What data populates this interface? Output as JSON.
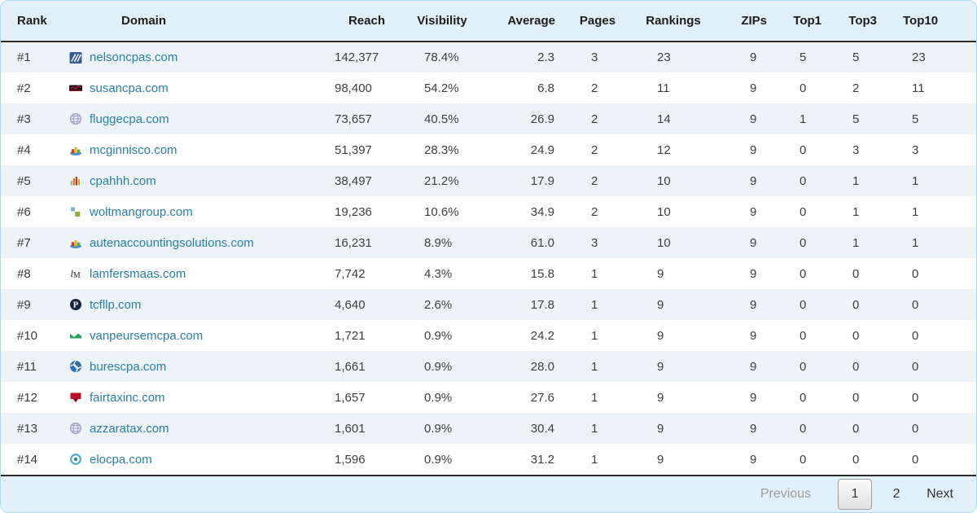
{
  "table": {
    "columns": [
      {
        "key": "rank",
        "label": "Rank"
      },
      {
        "key": "domain",
        "label": "Domain"
      },
      {
        "key": "reach",
        "label": "Reach"
      },
      {
        "key": "visibility",
        "label": "Visibility"
      },
      {
        "key": "average",
        "label": "Average"
      },
      {
        "key": "pages",
        "label": "Pages"
      },
      {
        "key": "rankings",
        "label": "Rankings"
      },
      {
        "key": "zips",
        "label": "ZIPs"
      },
      {
        "key": "top1",
        "label": "Top1"
      },
      {
        "key": "top3",
        "label": "Top3"
      },
      {
        "key": "top10",
        "label": "Top10"
      }
    ],
    "rows": [
      {
        "rank": "#1",
        "domain": "nelsoncpas.com",
        "favicon": "navy-striped-square",
        "reach": "142,377",
        "visibility": "78.4%",
        "average": "2.3",
        "pages": "3",
        "rankings": "23",
        "zips": "9",
        "top1": "5",
        "top3": "5",
        "top10": "23"
      },
      {
        "rank": "#2",
        "domain": "susancpa.com",
        "favicon": "dark-red-script-banner",
        "reach": "98,400",
        "visibility": "54.2%",
        "average": "6.8",
        "pages": "2",
        "rankings": "11",
        "zips": "9",
        "top1": "0",
        "top3": "2",
        "top10": "11"
      },
      {
        "rank": "#3",
        "domain": "fluggecpa.com",
        "favicon": "globe",
        "reach": "73,657",
        "visibility": "40.5%",
        "average": "26.9",
        "pages": "2",
        "rankings": "14",
        "zips": "9",
        "top1": "1",
        "top3": "5",
        "top10": "5"
      },
      {
        "rank": "#4",
        "domain": "mcginnisco.com",
        "favicon": "colorful-3d-chart",
        "reach": "51,397",
        "visibility": "28.3%",
        "average": "24.9",
        "pages": "2",
        "rankings": "12",
        "zips": "9",
        "top1": "0",
        "top3": "3",
        "top10": "3"
      },
      {
        "rank": "#5",
        "domain": "cpahhh.com",
        "favicon": "orange-bar-chart",
        "reach": "38,497",
        "visibility": "21.2%",
        "average": "17.9",
        "pages": "2",
        "rankings": "10",
        "zips": "9",
        "top1": "0",
        "top3": "1",
        "top10": "1"
      },
      {
        "rank": "#6",
        "domain": "woltmangroup.com",
        "favicon": "green-squares",
        "reach": "19,236",
        "visibility": "10.6%",
        "average": "34.9",
        "pages": "2",
        "rankings": "10",
        "zips": "9",
        "top1": "0",
        "top3": "1",
        "top10": "1"
      },
      {
        "rank": "#7",
        "domain": "autenaccountingsolutions.com",
        "favicon": "colorful-3d-chart",
        "reach": "16,231",
        "visibility": "8.9%",
        "average": "61.0",
        "pages": "3",
        "rankings": "10",
        "zips": "9",
        "top1": "0",
        "top3": "1",
        "top10": "1"
      },
      {
        "rank": "#8",
        "domain": "lamfersmaas.com",
        "favicon": "lm-monogram",
        "reach": "7,742",
        "visibility": "4.3%",
        "average": "15.8",
        "pages": "1",
        "rankings": "9",
        "zips": "9",
        "top1": "0",
        "top3": "0",
        "top10": "0"
      },
      {
        "rank": "#9",
        "domain": "tcfllp.com",
        "favicon": "navy-circle-p",
        "reach": "4,640",
        "visibility": "2.6%",
        "average": "17.8",
        "pages": "1",
        "rankings": "9",
        "zips": "9",
        "top1": "0",
        "top3": "0",
        "top10": "0"
      },
      {
        "rank": "#10",
        "domain": "vanpeursemcpa.com",
        "favicon": "green-wave",
        "reach": "1,721",
        "visibility": "0.9%",
        "average": "24.2",
        "pages": "1",
        "rankings": "9",
        "zips": "9",
        "top1": "0",
        "top3": "0",
        "top10": "0"
      },
      {
        "rank": "#11",
        "domain": "burescpa.com",
        "favicon": "blue-pinwheel",
        "reach": "1,661",
        "visibility": "0.9%",
        "average": "28.0",
        "pages": "1",
        "rankings": "9",
        "zips": "9",
        "top1": "0",
        "top3": "0",
        "top10": "0"
      },
      {
        "rank": "#12",
        "domain": "fairtaxinc.com",
        "favicon": "red-bookmark",
        "reach": "1,657",
        "visibility": "0.9%",
        "average": "27.6",
        "pages": "1",
        "rankings": "9",
        "zips": "9",
        "top1": "0",
        "top3": "0",
        "top10": "0"
      },
      {
        "rank": "#13",
        "domain": "azzaratax.com",
        "favicon": "globe",
        "reach": "1,601",
        "visibility": "0.9%",
        "average": "30.4",
        "pages": "1",
        "rankings": "9",
        "zips": "9",
        "top1": "0",
        "top3": "0",
        "top10": "0"
      },
      {
        "rank": "#14",
        "domain": "elocpa.com",
        "favicon": "blue-target",
        "reach": "1,596",
        "visibility": "0.9%",
        "average": "31.2",
        "pages": "1",
        "rankings": "9",
        "zips": "9",
        "top1": "0",
        "top3": "0",
        "top10": "0"
      }
    ]
  },
  "pagination": {
    "previous_label": "Previous",
    "pages": [
      {
        "label": "1",
        "active": true
      },
      {
        "label": "2",
        "active": false
      }
    ],
    "next_label": "Next"
  },
  "colors": {
    "link": "#2b7ea6",
    "header_bg": "#e2f1f9",
    "row_alt_bg": "#edf4f8",
    "card_border": "#aadaf0",
    "dark_rule": "#2b2b2b"
  }
}
